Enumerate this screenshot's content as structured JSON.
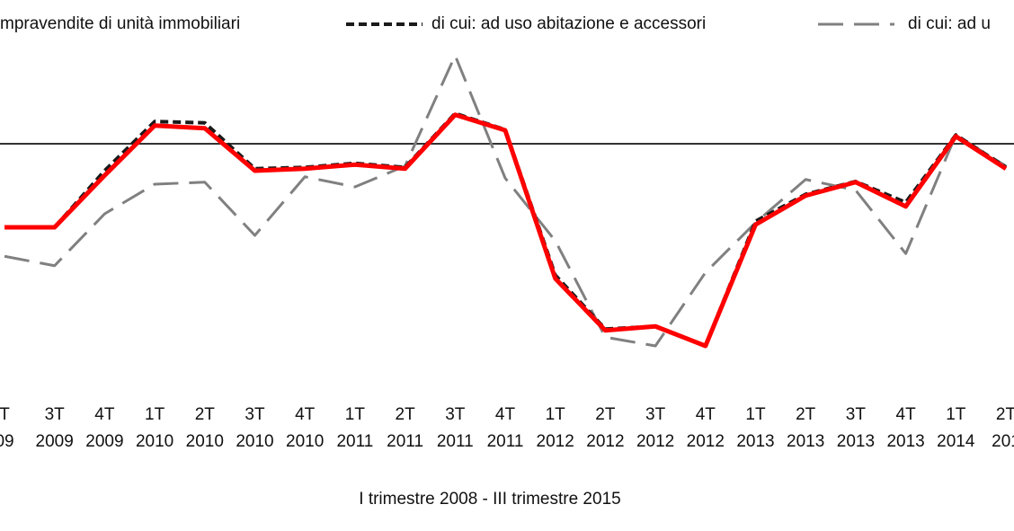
{
  "chart_data": {
    "type": "line",
    "subtitle": "I trimestre 2008 - III trimestre 2015",
    "categories": [
      [
        "T",
        "09"
      ],
      [
        "3T",
        "2009"
      ],
      [
        "4T",
        "2009"
      ],
      [
        "1T",
        "2010"
      ],
      [
        "2T",
        "2010"
      ],
      [
        "3T",
        "2010"
      ],
      [
        "4T",
        "2010"
      ],
      [
        "1T",
        "2011"
      ],
      [
        "2T",
        "2011"
      ],
      [
        "3T",
        "2011"
      ],
      [
        "4T",
        "2011"
      ],
      [
        "1T",
        "2012"
      ],
      [
        "2T",
        "2012"
      ],
      [
        "3T",
        "2012"
      ],
      [
        "4T",
        "2012"
      ],
      [
        "1T",
        "2013"
      ],
      [
        "2T",
        "2013"
      ],
      [
        "3T",
        "2013"
      ],
      [
        "4T",
        "2013"
      ],
      [
        "1T",
        "2014"
      ],
      [
        "2T",
        "201"
      ]
    ],
    "ylim": [
      -32,
      16
    ],
    "zero_line": true,
    "series": [
      {
        "name": "di cui: ad u",
        "color": "#808080",
        "style": "longdash",
        "values": [
          -16.7,
          -18.1,
          -10.4,
          -6.0,
          -5.7,
          -13.6,
          -4.9,
          -6.4,
          -3.3,
          13.1,
          -5.1,
          -14.4,
          -28.7,
          -30.0,
          -19.1,
          -11.7,
          -5.3,
          -6.9,
          -16.3,
          1.3,
          -3.3
        ]
      },
      {
        "name": "di cui: ad uso abitazione e accessori",
        "color": "#1a1a1a",
        "style": "dashed",
        "values": [
          -12.4,
          -12.4,
          -4.0,
          3.3,
          3.1,
          -3.7,
          -3.5,
          -2.9,
          -3.5,
          4.5,
          2.1,
          -19.5,
          -27.5,
          -27.1,
          -30.0,
          -11.5,
          -7.5,
          -5.6,
          -8.7,
          1.3,
          -3.5
        ]
      },
      {
        "name": "mpravendite di unità immobiliari",
        "color": "#ff0000",
        "style": "solid",
        "values": [
          -12.4,
          -12.4,
          -4.7,
          2.7,
          2.3,
          -4.0,
          -3.7,
          -3.1,
          -3.7,
          4.3,
          2.0,
          -20.0,
          -27.7,
          -27.1,
          -30.0,
          -12.0,
          -7.7,
          -5.7,
          -9.3,
          1.1,
          -3.7
        ]
      }
    ]
  }
}
